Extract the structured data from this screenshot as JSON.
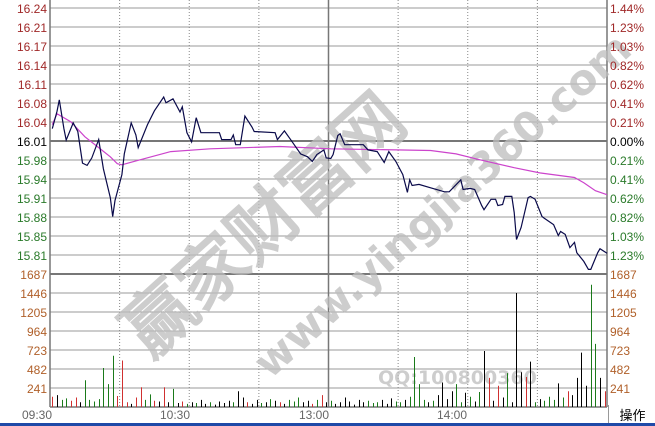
{
  "chart_data": {
    "type": "line",
    "price_axis": {
      "labels": [
        "16.24",
        "16.21",
        "16.17",
        "16.14",
        "16.11",
        "16.08",
        "16.04",
        "16.01",
        "15.98",
        "15.94",
        "15.91",
        "15.88",
        "15.85",
        "15.81"
      ],
      "pct_labels": [
        "1.44%",
        "1.23%",
        "1.03%",
        "0.82%",
        "0.62%",
        "0.41%",
        "0.21%",
        "0.00%",
        "0.21%",
        "0.41%",
        "0.62%",
        "0.82%",
        "1.03%",
        "1.23%"
      ],
      "ylim": [
        15.777,
        16.24
      ],
      "prev_close": 16.01
    },
    "volume_axis": {
      "labels": [
        "1687",
        "1446",
        "1205",
        "964",
        "723",
        "482",
        "241"
      ],
      "ylim": [
        0,
        1687
      ]
    },
    "x_ticks": [
      "09:30",
      "10:30",
      "13:00",
      "14:00"
    ],
    "series": [
      {
        "type": "line",
        "color": "#0a0a4a",
        "points": [
          [
            "09:31",
            16.03
          ],
          [
            "09:33",
            16.06
          ],
          [
            "09:34",
            16.08
          ],
          [
            "09:36",
            16.03
          ],
          [
            "09:37",
            16.01
          ],
          [
            "09:40",
            16.04
          ],
          [
            "09:42",
            16.025
          ],
          [
            "09:44",
            15.97
          ],
          [
            "09:46",
            15.966
          ],
          [
            "09:48",
            15.979
          ],
          [
            "09:51",
            16.011
          ],
          [
            "09:53",
            15.96
          ],
          [
            "09:56",
            15.91
          ],
          [
            "09:57",
            15.877
          ],
          [
            "09:58",
            15.905
          ],
          [
            "10:01",
            15.95
          ],
          [
            "10:02",
            15.986
          ],
          [
            "10:05",
            16.04
          ],
          [
            "10:07",
            16.019
          ],
          [
            "10:08",
            15.997
          ],
          [
            "10:12",
            16.037
          ],
          [
            "10:15",
            16.061
          ],
          [
            "10:19",
            16.085
          ],
          [
            "10:20",
            16.075
          ],
          [
            "10:23",
            16.082
          ],
          [
            "10:26",
            16.059
          ],
          [
            "10:27",
            16.068
          ],
          [
            "10:29",
            16.023
          ],
          [
            "10:31",
            16.007
          ],
          [
            "10:33",
            16.049
          ],
          [
            "10:35",
            16.023
          ],
          [
            "10:43",
            16.023
          ],
          [
            "10:44",
            16.011
          ],
          [
            "10:48",
            16.011
          ],
          [
            "10:49",
            16.019
          ],
          [
            "10:50",
            16.002
          ],
          [
            "10:52",
            16.002
          ],
          [
            "10:54",
            16.052
          ],
          [
            "10:57",
            16.033
          ],
          [
            "10:58",
            16.025
          ],
          [
            "11:07",
            16.023
          ],
          [
            "11:08",
            16.011
          ],
          [
            "11:11",
            16.026
          ],
          [
            "11:14",
            16.009
          ],
          [
            "11:18",
            15.986
          ],
          [
            "11:21",
            15.981
          ],
          [
            "11:23",
            15.973
          ],
          [
            "11:25",
            15.985
          ],
          [
            "11:28",
            15.993
          ],
          [
            "11:29",
            15.979
          ],
          [
            "13:01",
            15.978
          ],
          [
            "13:02",
            15.985
          ],
          [
            "13:04",
            16.018
          ],
          [
            "13:05",
            16.021
          ],
          [
            "13:07",
            16.002
          ],
          [
            "13:15",
            16.002
          ],
          [
            "13:17",
            15.993
          ],
          [
            "13:21",
            15.99
          ],
          [
            "13:24",
            15.971
          ],
          [
            "13:26",
            15.99
          ],
          [
            "13:29",
            15.973
          ],
          [
            "13:32",
            15.95
          ],
          [
            "13:34",
            15.919
          ],
          [
            "13:35",
            15.941
          ],
          [
            "13:36",
            15.931
          ],
          [
            "13:39",
            15.933
          ],
          [
            "13:44",
            15.927
          ],
          [
            "13:50",
            15.92
          ],
          [
            "13:52",
            15.92
          ],
          [
            "13:57",
            15.941
          ],
          [
            "13:58",
            15.924
          ],
          [
            "14:01",
            15.926
          ],
          [
            "14:03",
            15.924
          ],
          [
            "14:06",
            15.896
          ],
          [
            "14:07",
            15.889
          ],
          [
            "14:10",
            15.907
          ],
          [
            "14:12",
            15.907
          ],
          [
            "14:13",
            15.896
          ],
          [
            "14:15",
            15.898
          ],
          [
            "14:16",
            15.912
          ],
          [
            "14:19",
            15.912
          ],
          [
            "14:20",
            15.884
          ],
          [
            "14:21",
            15.837
          ],
          [
            "14:23",
            15.858
          ],
          [
            "14:26",
            15.91
          ],
          [
            "14:27",
            15.912
          ],
          [
            "14:29",
            15.907
          ],
          [
            "14:32",
            15.877
          ],
          [
            "14:33",
            15.874
          ],
          [
            "14:37",
            15.863
          ],
          [
            "14:39",
            15.844
          ],
          [
            "14:40",
            15.851
          ],
          [
            "14:42",
            15.846
          ],
          [
            "14:44",
            15.823
          ],
          [
            "14:46",
            15.832
          ],
          [
            "14:47",
            15.814
          ],
          [
            "14:50",
            15.799
          ],
          [
            "14:52",
            15.785
          ],
          [
            "14:53",
            15.785
          ],
          [
            "14:56",
            15.814
          ],
          [
            "14:57",
            15.821
          ],
          [
            "15:00",
            15.813
          ]
        ]
      },
      {
        "type": "line",
        "color": "#cc44cc",
        "points": [
          [
            "09:31",
            16.037
          ],
          [
            "09:33",
            16.056
          ],
          [
            "09:39",
            16.042
          ],
          [
            "09:45",
            16.016
          ],
          [
            "09:51",
            15.997
          ],
          [
            "09:56",
            15.981
          ],
          [
            "09:59",
            15.969
          ],
          [
            "10:01",
            15.967
          ],
          [
            "10:09",
            15.976
          ],
          [
            "10:22",
            15.99
          ],
          [
            "10:39",
            15.995
          ],
          [
            "11:09",
            15.999
          ],
          [
            "13:01",
            15.995
          ],
          [
            "13:29",
            15.993
          ],
          [
            "13:44",
            15.992
          ],
          [
            "13:55",
            15.986
          ],
          [
            "14:05",
            15.976
          ],
          [
            "14:20",
            15.962
          ],
          [
            "14:31",
            15.953
          ],
          [
            "14:46",
            15.945
          ],
          [
            "14:50",
            15.936
          ],
          [
            "14:55",
            15.922
          ],
          [
            "15:00",
            15.915
          ]
        ]
      }
    ],
    "volume": {
      "colors": {
        "r": "#d03030",
        "g": "#1a7a1a",
        "k": "#000000"
      },
      "values": [
        130,
        150,
        90,
        110,
        80,
        120,
        60,
        340,
        90,
        70,
        100,
        495,
        290,
        650,
        140,
        590,
        60,
        40,
        120,
        250,
        90,
        160,
        80,
        70,
        250,
        60,
        230,
        50,
        70,
        40,
        60,
        50,
        90,
        40,
        60,
        30,
        70,
        50,
        80,
        60,
        200,
        120,
        60,
        40,
        90,
        50,
        60,
        100,
        80,
        60,
        40,
        90,
        70,
        120,
        60,
        80,
        40,
        90,
        150,
        60,
        80,
        40,
        60,
        120,
        70,
        30,
        90,
        60,
        80,
        50,
        60,
        90,
        40,
        110,
        70,
        60,
        90,
        130,
        635,
        290,
        90,
        60,
        80,
        150,
        310,
        100,
        200,
        290,
        60,
        180,
        130,
        70,
        190,
        710,
        370,
        80,
        270,
        120,
        430,
        60,
        1446,
        440,
        380,
        575,
        60,
        100,
        80,
        130,
        90,
        300,
        120,
        200,
        150,
        370,
        690,
        270,
        1550,
        800,
        370,
        200
      ],
      "dirs": "rkggrrkgggggggrrrkrrggrkrkgkrgkgkkgkkkkgkkrkkgkgkrkgggkkrgrkgkkkkkkkgggkkkggkggggkgkkkkggkgkgkrkrkgkkkrkgkgggkgrkkkkggkr"
    }
  },
  "footer": {
    "action_button": "操作"
  },
  "watermark": {
    "site_name": "赢家财富网",
    "url": "www.yingjia360.com",
    "qq": "QQ:100800360"
  }
}
